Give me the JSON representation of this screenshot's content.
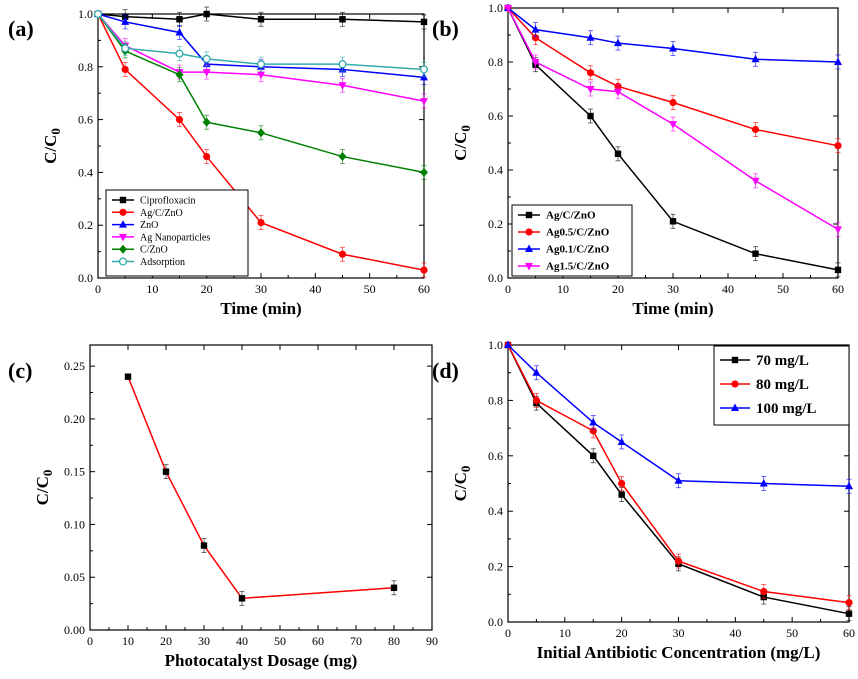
{
  "chart_data": [
    {
      "id": "a",
      "panel_label": "(a)",
      "type": "line",
      "xlabel": "Time (min)",
      "ylabel": "C/C",
      "ylabel_sub": "0",
      "xlim": [
        0,
        60
      ],
      "ylim": [
        0,
        1.0
      ],
      "xticks": [
        0,
        10,
        20,
        30,
        40,
        50,
        60
      ],
      "xtick_labels": [
        "0",
        "10",
        "20",
        "30",
        "40",
        "50",
        "60"
      ],
      "yticks": [
        0.0,
        0.2,
        0.4,
        0.6,
        0.8,
        1.0
      ],
      "ytick_labels": [
        "0.0",
        "0.2",
        "0.4",
        "0.6",
        "0.8",
        "1.0"
      ],
      "legend": "bottom-left",
      "series": [
        {
          "name": "Ciprofloxacin",
          "color": "#000000",
          "marker": "square",
          "x": [
            0,
            5,
            15,
            20,
            30,
            45,
            60
          ],
          "values": [
            1.0,
            0.99,
            0.98,
            1.0,
            0.98,
            0.98,
            0.97
          ]
        },
        {
          "name": "Ag/C/ZnO",
          "color": "#ff0000",
          "marker": "circle",
          "x": [
            0,
            5,
            15,
            20,
            30,
            45,
            60
          ],
          "values": [
            1.0,
            0.79,
            0.6,
            0.46,
            0.21,
            0.09,
            0.03
          ]
        },
        {
          "name": "ZnO",
          "color": "#0000ff",
          "marker": "triangle-up",
          "x": [
            0,
            5,
            15,
            20,
            30,
            45,
            60
          ],
          "values": [
            1.0,
            0.97,
            0.93,
            0.81,
            0.8,
            0.79,
            0.76
          ]
        },
        {
          "name": "Ag Nanoparticles",
          "color": "#ff00ff",
          "marker": "triangle-down",
          "x": [
            0,
            5,
            15,
            20,
            30,
            45,
            60
          ],
          "values": [
            1.0,
            0.88,
            0.78,
            0.78,
            0.77,
            0.73,
            0.67
          ]
        },
        {
          "name": "C/ZnO",
          "color": "#008000",
          "marker": "diamond",
          "x": [
            0,
            5,
            15,
            20,
            30,
            45,
            60
          ],
          "values": [
            1.0,
            0.86,
            0.77,
            0.59,
            0.55,
            0.46,
            0.4
          ]
        },
        {
          "name": "Adsorption",
          "color": "#33aaaa",
          "marker": "circle-open",
          "x": [
            0,
            5,
            15,
            20,
            30,
            45,
            60
          ],
          "values": [
            1.0,
            0.87,
            0.85,
            0.83,
            0.81,
            0.81,
            0.79
          ]
        }
      ]
    },
    {
      "id": "b",
      "panel_label": "(b)",
      "type": "line",
      "xlabel": "Time (min)",
      "ylabel": "C/C",
      "ylabel_sub": "0",
      "xlim": [
        0,
        60
      ],
      "ylim": [
        0,
        1.0
      ],
      "xticks": [
        0,
        10,
        20,
        30,
        40,
        50,
        60
      ],
      "xtick_labels": [
        "0",
        "10",
        "20",
        "30",
        "40",
        "50",
        "60"
      ],
      "yticks": [
        0.0,
        0.2,
        0.4,
        0.6,
        0.8,
        1.0
      ],
      "ytick_labels": [
        "0.0",
        "0.2",
        "0.4",
        "0.6",
        "0.8",
        "1.0"
      ],
      "legend": "bottom-left",
      "series": [
        {
          "name": "Ag/C/ZnO",
          "color": "#000000",
          "marker": "square",
          "x": [
            0,
            5,
            15,
            20,
            30,
            45,
            60
          ],
          "values": [
            1.0,
            0.79,
            0.6,
            0.46,
            0.21,
            0.09,
            0.03
          ]
        },
        {
          "name": "Ag0.5/C/ZnO",
          "color": "#ff0000",
          "marker": "circle",
          "x": [
            0,
            5,
            15,
            20,
            30,
            45,
            60
          ],
          "values": [
            1.0,
            0.89,
            0.76,
            0.71,
            0.65,
            0.55,
            0.49
          ]
        },
        {
          "name": "Ag0.1/C/ZnO",
          "color": "#0000ff",
          "marker": "triangle-up",
          "x": [
            0,
            5,
            15,
            20,
            30,
            45,
            60
          ],
          "values": [
            1.0,
            0.92,
            0.89,
            0.87,
            0.85,
            0.81,
            0.8
          ]
        },
        {
          "name": "Ag1.5/C/ZnO",
          "color": "#ff00ff",
          "marker": "triangle-down",
          "x": [
            0,
            5,
            15,
            20,
            30,
            45,
            60
          ],
          "values": [
            1.0,
            0.8,
            0.7,
            0.69,
            0.57,
            0.36,
            0.18
          ]
        }
      ]
    },
    {
      "id": "c",
      "panel_label": "(c)",
      "type": "line",
      "xlabel": "Photocatalyst Dosage (mg)",
      "ylabel": "C/C",
      "ylabel_sub": "0",
      "xlim": [
        0,
        90
      ],
      "ylim": [
        0,
        0.27
      ],
      "xticks": [
        0,
        10,
        20,
        30,
        40,
        50,
        60,
        70,
        80,
        90
      ],
      "xtick_labels": [
        "0",
        "10",
        "20",
        "30",
        "40",
        "50",
        "60",
        "70",
        "80",
        "90"
      ],
      "yticks": [
        0.0,
        0.05,
        0.1,
        0.15,
        0.2,
        0.25
      ],
      "ytick_labels": [
        "0.00",
        "0.05",
        "0.10",
        "0.15",
        "0.20",
        "0.25"
      ],
      "legend": "none",
      "series": [
        {
          "name": "C/C0",
          "color": "#ff0000",
          "marker": "square-black",
          "x": [
            10,
            20,
            30,
            40,
            80
          ],
          "values": [
            0.24,
            0.15,
            0.08,
            0.03,
            0.04
          ]
        }
      ]
    },
    {
      "id": "d",
      "panel_label": "(d)",
      "type": "line",
      "xlabel": "Initial Antibiotic Concentration (mg/L)",
      "ylabel": "C/C",
      "ylabel_sub": "0",
      "xlim": [
        0,
        60
      ],
      "ylim": [
        0,
        1.0
      ],
      "xticks": [
        0,
        10,
        20,
        30,
        40,
        50,
        60
      ],
      "xtick_labels": [
        "0",
        "10",
        "20",
        "30",
        "40",
        "50",
        "60"
      ],
      "yticks": [
        0.0,
        0.2,
        0.4,
        0.6,
        0.8,
        1.0
      ],
      "ytick_labels": [
        "0.0",
        "0.2",
        "0.4",
        "0.6",
        "0.8",
        "1.0"
      ],
      "legend": "top-right",
      "series": [
        {
          "name": "70 mg/L",
          "color": "#000000",
          "marker": "square",
          "x": [
            0,
            5,
            15,
            20,
            30,
            45,
            60
          ],
          "values": [
            1.0,
            0.79,
            0.6,
            0.46,
            0.21,
            0.09,
            0.03
          ]
        },
        {
          "name": "80 mg/L",
          "color": "#ff0000",
          "marker": "circle",
          "x": [
            0,
            5,
            15,
            20,
            30,
            45,
            60
          ],
          "values": [
            1.0,
            0.8,
            0.69,
            0.5,
            0.22,
            0.11,
            0.07
          ]
        },
        {
          "name": "100 mg/L",
          "color": "#0000ff",
          "marker": "triangle-up",
          "x": [
            0,
            5,
            15,
            20,
            30,
            45,
            60
          ],
          "values": [
            1.0,
            0.9,
            0.72,
            0.65,
            0.51,
            0.5,
            0.49
          ]
        }
      ]
    }
  ]
}
